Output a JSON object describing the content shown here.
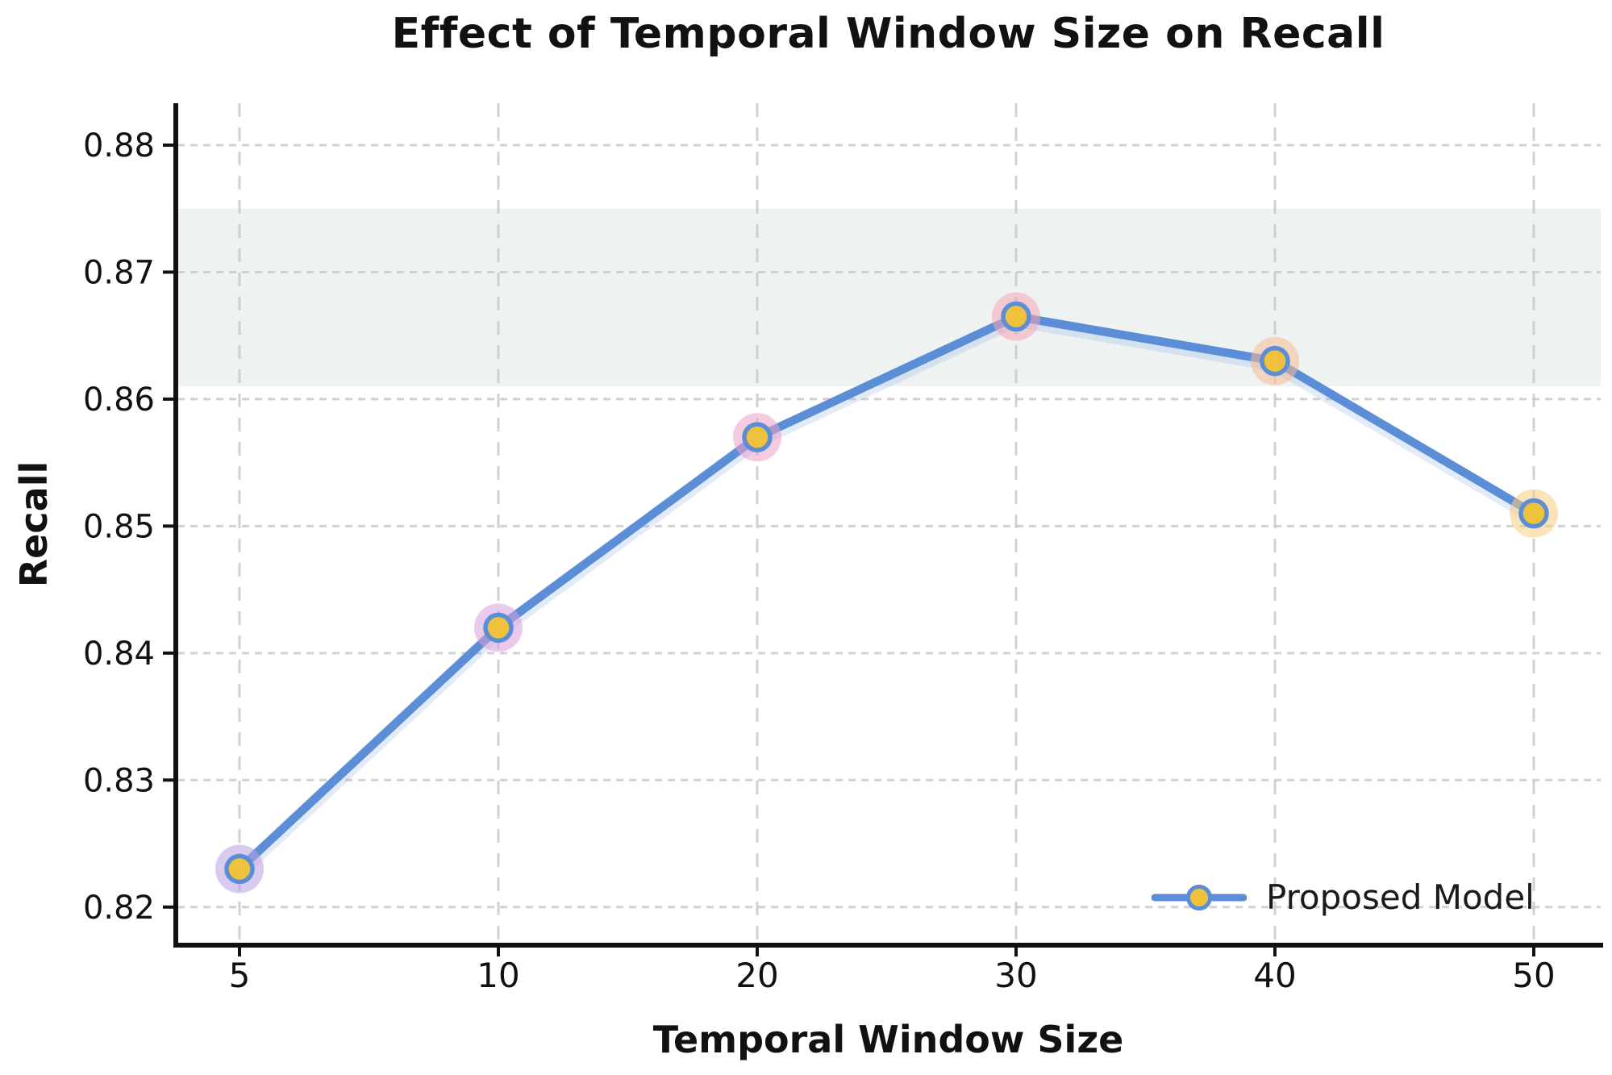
{
  "chart_data": {
    "type": "line",
    "title": "Effect of Temporal Window Size on Recall",
    "xlabel": "Temporal Window Size",
    "ylabel": "Recall",
    "x_tick_labels": [
      "5",
      "10",
      "20",
      "30",
      "40",
      "50"
    ],
    "y_ticks": [
      0.82,
      0.83,
      0.84,
      0.85,
      0.86,
      0.87,
      0.88
    ],
    "y_tick_labels": [
      "0.82",
      "0.83",
      "0.84",
      "0.85",
      "0.86",
      "0.87",
      "0.88"
    ],
    "ylim": [
      0.817,
      0.8833
    ],
    "grid": true,
    "legend_position": "lower right",
    "band": {
      "ymin": 0.861,
      "ymax": 0.875,
      "color": "#eef3f2"
    },
    "categories": [
      5,
      10,
      20,
      30,
      40,
      50
    ],
    "series": [
      {
        "name": "Proposed Model",
        "values": [
          0.823,
          0.842,
          0.857,
          0.8665,
          0.863,
          0.851
        ],
        "line_color": "#5b8ed6",
        "marker_fill": "#eec23d",
        "marker_edge": "#5b8ed6",
        "halo_colors": [
          "#b9a0e1",
          "#d89edc",
          "#eba0c8",
          "#f6a5b4",
          "#f8b996",
          "#f7cd80"
        ]
      }
    ],
    "style": {
      "grid_color": "#c9c9c9",
      "spine_color": "#111111",
      "tick_label_color": "#111111",
      "background": "#ffffff"
    }
  }
}
